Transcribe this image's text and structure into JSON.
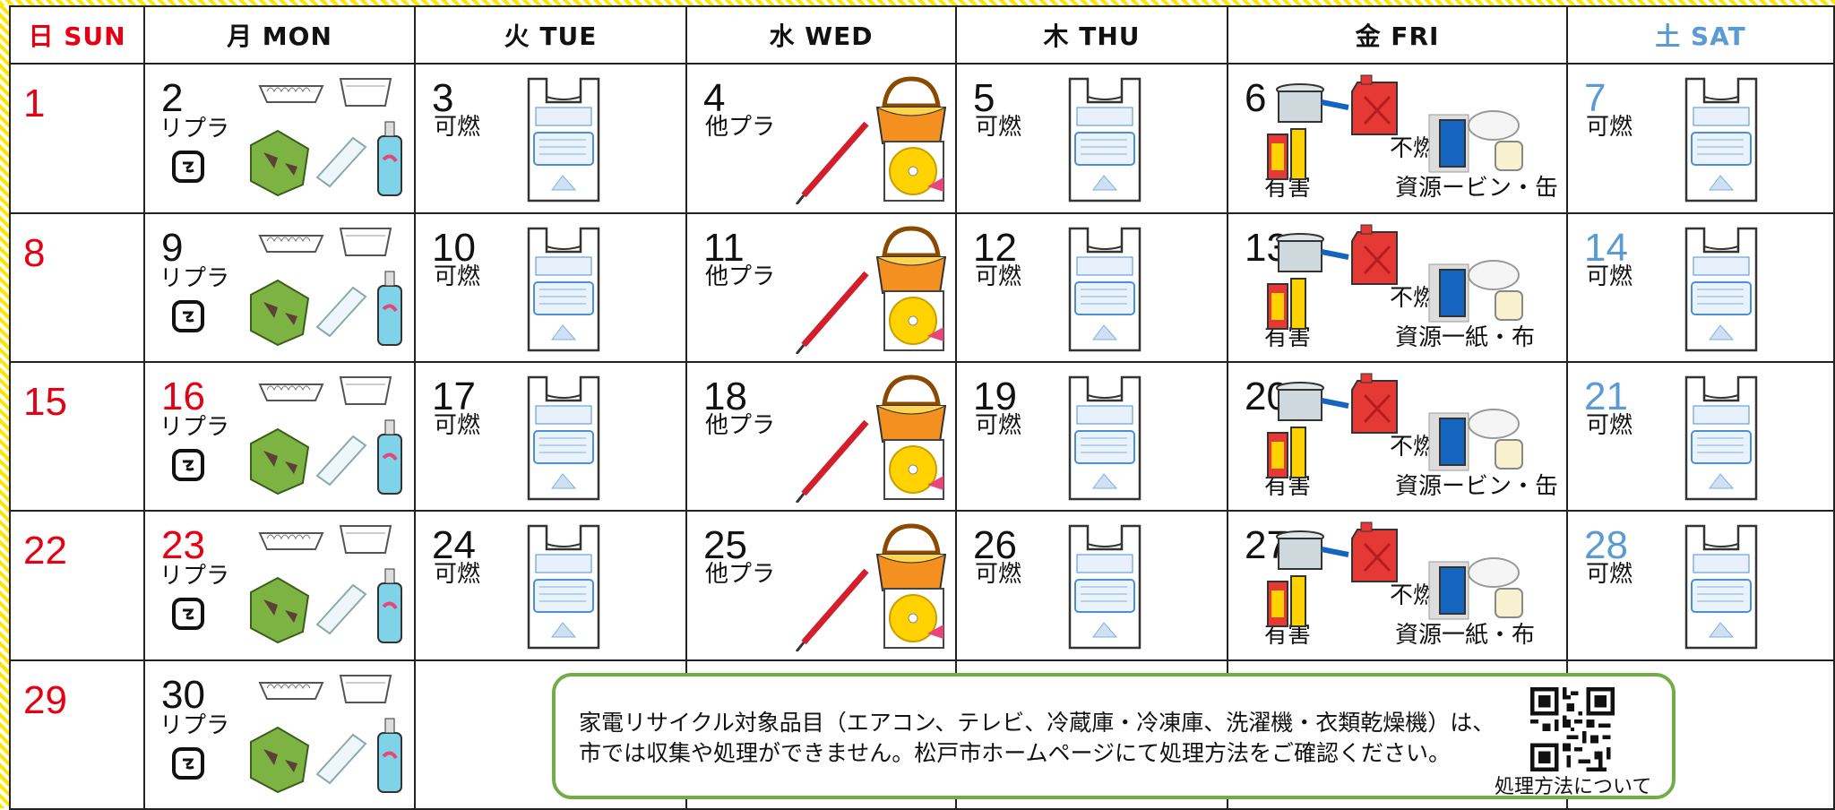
{
  "header": {
    "days": [
      {
        "text": "日 SUN",
        "color": "#e60012"
      },
      {
        "text": "月 MON"
      },
      {
        "text": "火 TUE"
      },
      {
        "text": "水 WED"
      },
      {
        "text": "木 THU"
      },
      {
        "text": "金 FRI"
      },
      {
        "text": "土 SAT",
        "color": "#5b9bd5"
      }
    ]
  },
  "weeks": [
    [
      {
        "day": 1,
        "color": "#e60012"
      },
      {
        "day": 2,
        "labels": [
          "リプラ"
        ]
      },
      {
        "day": 3,
        "labels": [
          "可燃"
        ]
      },
      {
        "day": 4,
        "labels": [
          "他プラ"
        ]
      },
      {
        "day": 5,
        "labels": [
          "可燃"
        ]
      },
      {
        "day": 6,
        "labels": [
          "有害",
          "不燃",
          "資源ービン・缶"
        ]
      },
      {
        "day": 7,
        "labels": [
          "可燃"
        ],
        "color": "#5b9bd5"
      }
    ],
    [
      {
        "day": 8,
        "color": "#e60012"
      },
      {
        "day": 9,
        "labels": [
          "リプラ"
        ]
      },
      {
        "day": 10,
        "labels": [
          "可燃"
        ]
      },
      {
        "day": 11,
        "labels": [
          "他プラ"
        ]
      },
      {
        "day": 12,
        "labels": [
          "可燃"
        ]
      },
      {
        "day": 13,
        "labels": [
          "有害",
          "不燃",
          "資源一紙・布"
        ]
      },
      {
        "day": 14,
        "labels": [
          "可燃"
        ],
        "color": "#5b9bd5"
      }
    ],
    [
      {
        "day": 15,
        "color": "#e60012"
      },
      {
        "day": 16,
        "labels": [
          "リプラ"
        ],
        "color": "#e60012"
      },
      {
        "day": 17,
        "labels": [
          "可燃"
        ]
      },
      {
        "day": 18,
        "labels": [
          "他プラ"
        ]
      },
      {
        "day": 19,
        "labels": [
          "可燃"
        ]
      },
      {
        "day": 20,
        "labels": [
          "有害",
          "不燃",
          "資源ービン・缶"
        ]
      },
      {
        "day": 21,
        "labels": [
          "可燃"
        ],
        "color": "#5b9bd5"
      }
    ],
    [
      {
        "day": 22,
        "color": "#e60012"
      },
      {
        "day": 23,
        "labels": [
          "リプラ"
        ],
        "color": "#e60012"
      },
      {
        "day": 24,
        "labels": [
          "可燃"
        ]
      },
      {
        "day": 25,
        "labels": [
          "他プラ"
        ]
      },
      {
        "day": 26,
        "labels": [
          "可燃"
        ]
      },
      {
        "day": 27,
        "labels": [
          "有害",
          "不燃",
          "資源一紙・布"
        ]
      },
      {
        "day": 28,
        "labels": [
          "可燃"
        ],
        "color": "#5b9bd5"
      }
    ],
    [
      {
        "day": 29,
        "color": "#e60012"
      },
      {
        "day": 30,
        "labels": [
          "リプラ"
        ]
      },
      null,
      null,
      null,
      null,
      null
    ]
  ],
  "notice": {
    "lines": [
      "家電リサイクル対象品目（エアコン、テレビ、冷蔵庫・冷凍庫、洗濯機・衣類乾燥機）は、",
      "市では収集や処理ができません。松戸市ホームページにて処理方法をご確認ください。"
    ],
    "qr_caption": "処理方法について"
  }
}
